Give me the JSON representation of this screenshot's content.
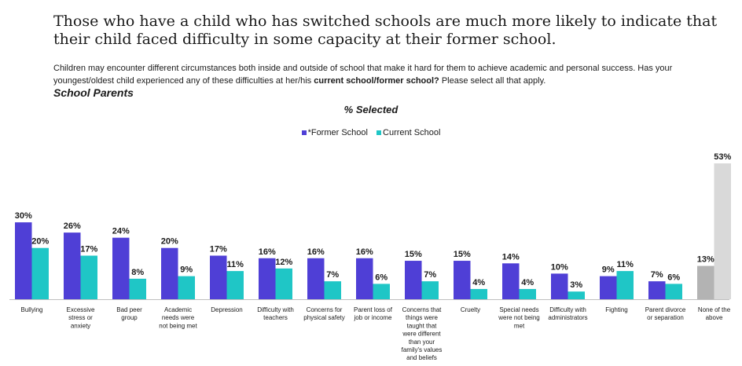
{
  "headline": "Those who have a child who has switched schools are much more likely to indicate that their child faced difficulty in some capacity at their former school.",
  "question": {
    "text": "Children may encounter different circumstances both inside and outside of school that make it hard for them to achieve academic and personal success. Has your youngest/oldest child experienced any of these difficulties at her/his ",
    "bold": "current school/former school?",
    "tail": " Please select all that apply."
  },
  "audience": "School Parents",
  "colors": {
    "former": "#4f3fd6",
    "current": "#1fc6c6",
    "none_former": "#b3b3b3",
    "none_current": "#d9d9d9",
    "axis": "#bfbfbf"
  },
  "chart_data": {
    "type": "bar",
    "title": "% Selected",
    "xlabel": "",
    "ylabel": "",
    "ylim": [
      0,
      53
    ],
    "legend_position": "top-center",
    "grid": false,
    "categories": [
      "Bullying",
      "Excessive stress or anxiety",
      "Bad peer group",
      "Academic needs were not being met",
      "Depression",
      "Difficulty with teachers",
      "Concerns for physical safety",
      "Parent loss of job or income",
      "Concerns that things were taught that were different than your family's values and beliefs",
      "Cruelty",
      "Special needs were not being met",
      "Difficulty with administrators",
      "Fighting",
      "Parent divorce or separation",
      "None of the above"
    ],
    "category_lines": [
      [
        "Bullying"
      ],
      [
        "Excessive",
        "stress or",
        "anxiety"
      ],
      [
        "Bad peer",
        "group"
      ],
      [
        "Academic",
        "needs were",
        "not being met"
      ],
      [
        "Depression"
      ],
      [
        "Difficulty with",
        "teachers"
      ],
      [
        "Concerns for",
        "physical safety"
      ],
      [
        "Parent loss of",
        "job or income"
      ],
      [
        "Concerns that",
        "things were",
        "taught that",
        "were different",
        "than your",
        "family's values",
        "and beliefs"
      ],
      [
        "Cruelty"
      ],
      [
        "Special needs",
        "were not being",
        "met"
      ],
      [
        "Difficulty with",
        "administrators"
      ],
      [
        "Fighting"
      ],
      [
        "Parent divorce",
        "or separation"
      ],
      [
        "None of the",
        "above"
      ]
    ],
    "series": [
      {
        "name": "*Former School",
        "values": [
          30,
          26,
          24,
          20,
          17,
          16,
          16,
          16,
          15,
          15,
          14,
          10,
          9,
          7,
          13
        ]
      },
      {
        "name": "Current School",
        "values": [
          20,
          17,
          8,
          9,
          11,
          12,
          7,
          6,
          7,
          4,
          4,
          3,
          11,
          6,
          53
        ]
      }
    ],
    "value_suffix": "%"
  }
}
